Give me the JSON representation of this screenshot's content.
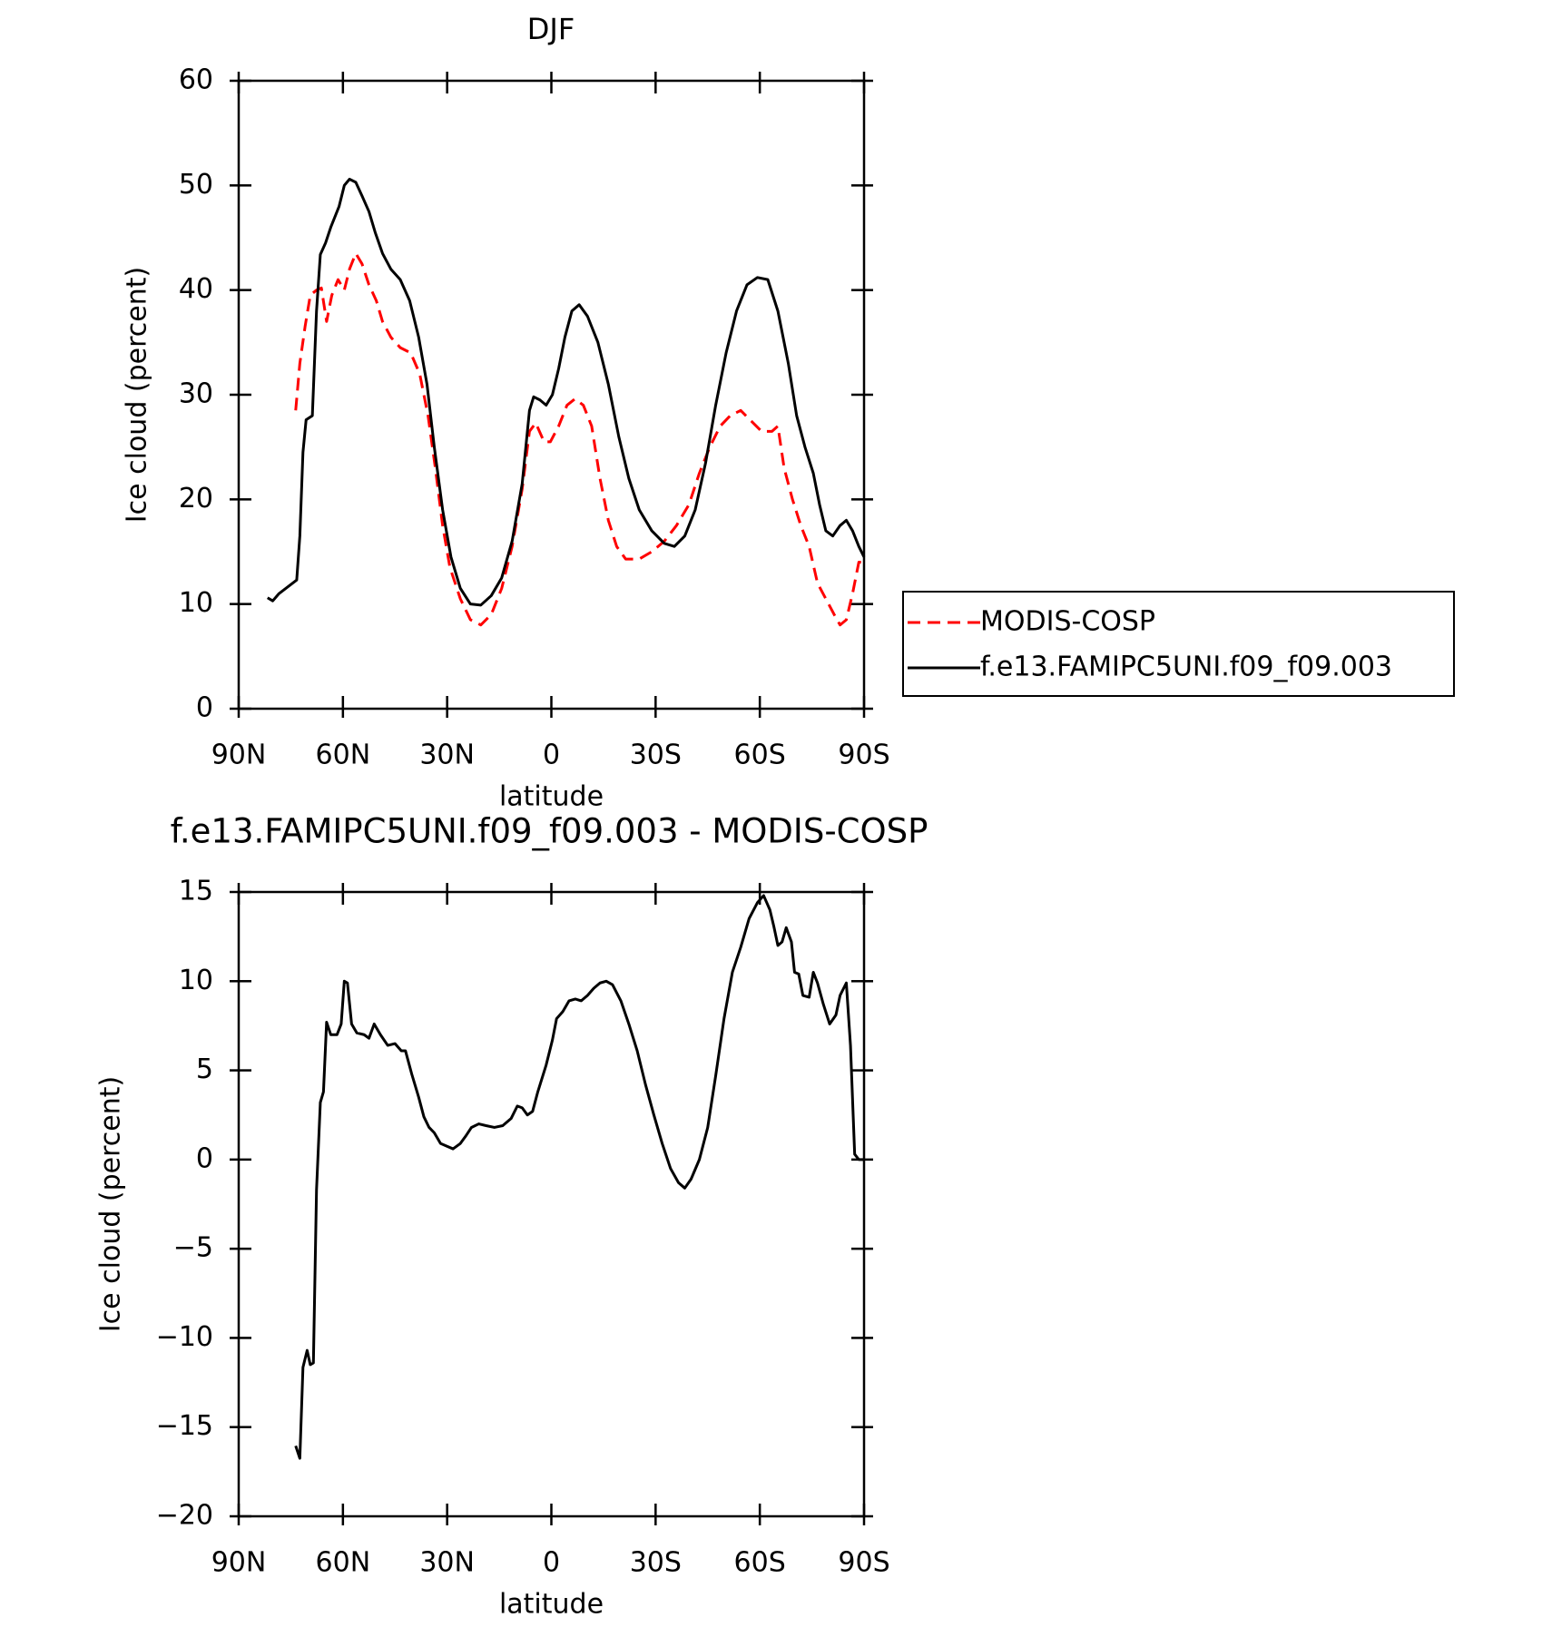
{
  "chart_data": [
    {
      "type": "line",
      "title": "DJF",
      "x_label": "latitude",
      "y_label": "Ice cloud (percent)",
      "xlim": [
        90,
        -90
      ],
      "ylim": [
        0,
        60
      ],
      "xticks": [
        {
          "value": 90,
          "label": "90N"
        },
        {
          "value": 60,
          "label": "60N"
        },
        {
          "value": 30,
          "label": "30N"
        },
        0,
        {
          "value": -30,
          "label": "30S"
        },
        {
          "value": -60,
          "label": "60S"
        },
        {
          "value": -90,
          "label": "90S"
        }
      ],
      "yticks": [
        0,
        10,
        20,
        30,
        40,
        50,
        60
      ],
      "legend": "right",
      "series": [
        {
          "name": "MODIS-COSP",
          "color": "#ff0000",
          "line_style": "dashed",
          "x": [
            73.6,
            72.4,
            70.9,
            69.4,
            67.6,
            66.2,
            64.7,
            63.2,
            61.4,
            59.6,
            58.1,
            56.3,
            54.5,
            52.5,
            50.4,
            48.6,
            46.2,
            43.5,
            40.5,
            37.9,
            35.5,
            33.4,
            31.3,
            29.2,
            26.2,
            23.3,
            20.3,
            17.3,
            14.3,
            11.3,
            8.4,
            6.3,
            4.5,
            2.1,
            0.3,
            -2.1,
            -4.5,
            -6.8,
            -9.2,
            -11.6,
            -14.0,
            -16.4,
            -18.8,
            -21.4,
            -25.3,
            -28.9,
            -32.5,
            -36.0,
            -39.6,
            -42.6,
            -45.6,
            -48.6,
            -51.5,
            -54.5,
            -57.5,
            -60.5,
            -63.5,
            -65.2,
            -67.0,
            -69.4,
            -71.8,
            -74.2,
            -76.6,
            -79.0,
            -81.4,
            -83.1,
            -84.9,
            -86.7,
            -88.5,
            -90
          ],
          "values": [
            28.5,
            33,
            36.5,
            39.5,
            40,
            40.2,
            37,
            39.5,
            41,
            40,
            42,
            43.5,
            42.5,
            40.5,
            39,
            37,
            35.5,
            34.5,
            34,
            32,
            28,
            23,
            17.5,
            13.5,
            10.5,
            8.5,
            8,
            9,
            11.5,
            15.5,
            21,
            26.5,
            27.3,
            25.5,
            25.5,
            27,
            29,
            29.6,
            29,
            27,
            22,
            18,
            15.5,
            14.3,
            14.3,
            15,
            16,
            17.5,
            19.5,
            22.5,
            25,
            27,
            28,
            28.5,
            27.5,
            26.5,
            26.5,
            27,
            23,
            20,
            17.5,
            15.5,
            12,
            10.5,
            9,
            8,
            8.5,
            11,
            14,
            14
          ]
        },
        {
          "name": "f.e13.FAMIPC5UNI.f09_f09.003",
          "color": "#000000",
          "line_style": "solid",
          "x": [
            81.7,
            80.2,
            78.4,
            73.3,
            72.4,
            71.5,
            70.6,
            68.8,
            67.6,
            66.5,
            65.0,
            63.5,
            61.1,
            59.6,
            58.1,
            56.3,
            54.5,
            52.5,
            50.7,
            48.6,
            46.2,
            43.5,
            40.8,
            38.2,
            35.8,
            33.7,
            31.3,
            28.9,
            26.2,
            23.3,
            20.3,
            17.3,
            14.3,
            11.3,
            8.4,
            6.3,
            5.1,
            3.3,
            1.5,
            -0.3,
            -2.1,
            -3.9,
            -5.9,
            -8.0,
            -10.4,
            -13.4,
            -16.4,
            -19.4,
            -22.3,
            -25.3,
            -28.9,
            -32.5,
            -35.4,
            -38.4,
            -41.4,
            -44.4,
            -47.3,
            -50.3,
            -53.3,
            -56.3,
            -59.3,
            -62.3,
            -65.2,
            -68.2,
            -70.6,
            -73.0,
            -75.4,
            -77.2,
            -79.0,
            -81.0,
            -83.1,
            -84.9,
            -86.7,
            -88.5,
            -90
          ],
          "values": [
            10.6,
            10.3,
            11,
            12.3,
            16.5,
            24.5,
            27.6,
            28,
            38,
            43.4,
            44.5,
            46,
            48,
            50,
            50.6,
            50.3,
            49,
            47.5,
            45.5,
            43.5,
            42,
            41,
            39,
            35.5,
            31,
            25,
            19,
            14.5,
            11.5,
            10,
            9.9,
            10.8,
            12.5,
            16,
            21.5,
            28.5,
            29.8,
            29.5,
            29,
            30,
            32.5,
            35.5,
            38,
            38.6,
            37.5,
            35,
            31,
            26,
            22,
            19,
            17,
            15.8,
            15.5,
            16.5,
            19,
            23.5,
            29,
            34,
            38,
            40.5,
            41.2,
            41,
            38,
            33,
            28,
            25,
            22.5,
            19.5,
            17,
            16.5,
            17.5,
            18,
            17,
            15.5,
            14.5
          ]
        }
      ]
    },
    {
      "type": "line",
      "title": "f.e13.FAMIPC5UNI.f09_f09.003 - MODIS-COSP",
      "x_label": "latitude",
      "y_label": "Ice cloud (percent)",
      "xlim": [
        90,
        -90
      ],
      "ylim": [
        -20,
        15
      ],
      "xticks": [
        {
          "value": 90,
          "label": "90N"
        },
        {
          "value": 60,
          "label": "60N"
        },
        {
          "value": 30,
          "label": "30N"
        },
        0,
        {
          "value": -30,
          "label": "30S"
        },
        {
          "value": -60,
          "label": "60S"
        },
        {
          "value": -90,
          "label": "90S"
        }
      ],
      "yticks": [
        {
          "value": -20,
          "label": "−20"
        },
        {
          "value": -15,
          "label": "−15"
        },
        {
          "value": -10,
          "label": "−10"
        },
        {
          "value": -5,
          "label": "−5"
        },
        0,
        5,
        10,
        15
      ],
      "series": [
        {
          "color": "#000000",
          "line_style": "solid",
          "x": [
            73.6,
            72.4,
            71.5,
            70.3,
            69.4,
            68.5,
            67.6,
            66.5,
            65.6,
            64.7,
            63.5,
            61.7,
            60.5,
            59.6,
            58.7,
            57.5,
            56.0,
            53.9,
            52.5,
            51.0,
            49.2,
            47.1,
            45.0,
            43.2,
            42.0,
            40.2,
            38.2,
            36.7,
            35.2,
            33.7,
            31.9,
            30.1,
            28.3,
            26.2,
            24.7,
            23.0,
            20.9,
            18.8,
            16.4,
            14.0,
            11.6,
            9.8,
            8.4,
            6.9,
            5.4,
            3.9,
            1.5,
            -0.3,
            -1.5,
            -3.3,
            -5.1,
            -6.9,
            -8.6,
            -10.4,
            -12.2,
            -14.0,
            -15.8,
            -17.6,
            -20.0,
            -22.3,
            -24.7,
            -27.1,
            -29.5,
            -31.9,
            -34.3,
            -36.6,
            -38.4,
            -40.2,
            -42.6,
            -45.0,
            -47.3,
            -49.7,
            -52.1,
            -54.5,
            -56.9,
            -59.3,
            -61.1,
            -62.9,
            -64.0,
            -65.2,
            -66.4,
            -67.6,
            -69.1,
            -70.0,
            -71.2,
            -72.4,
            -74.2,
            -75.4,
            -76.6,
            -78.3,
            -80.1,
            -81.9,
            -83.1,
            -84.9,
            -86.1,
            -87.3,
            -88.5,
            -90
          ],
          "values": [
            -16.05,
            -16.75,
            -11.65,
            -10.7,
            -11.5,
            -11.4,
            -1.7,
            3.2,
            3.8,
            7.7,
            7,
            7,
            7.6,
            10,
            9.9,
            7.6,
            7.1,
            7,
            6.8,
            7.6,
            7,
            6.4,
            6.5,
            6.1,
            6.1,
            4.8,
            3.5,
            2.4,
            1.8,
            1.5,
            0.9,
            0.75,
            0.6,
            0.9,
            1.3,
            1.8,
            2,
            1.9,
            1.8,
            1.9,
            2.3,
            3,
            2.9,
            2.5,
            2.7,
            3.8,
            5.3,
            6.7,
            7.9,
            8.3,
            8.9,
            9,
            8.9,
            9.2,
            9.6,
            9.9,
            10,
            9.8,
            8.9,
            7.6,
            6.1,
            4.2,
            2.5,
            0.9,
            -0.5,
            -1.3,
            -1.6,
            -1.1,
            0,
            1.8,
            4.7,
            7.9,
            10.5,
            11.9,
            13.5,
            14.4,
            14.8,
            14,
            13.1,
            12,
            12.2,
            13,
            12.2,
            10.5,
            10.4,
            9.2,
            9.1,
            10.5,
            9.9,
            8.7,
            7.6,
            8.1,
            9.2,
            9.9,
            6.4,
            0.3,
            0,
            0
          ]
        }
      ]
    }
  ]
}
